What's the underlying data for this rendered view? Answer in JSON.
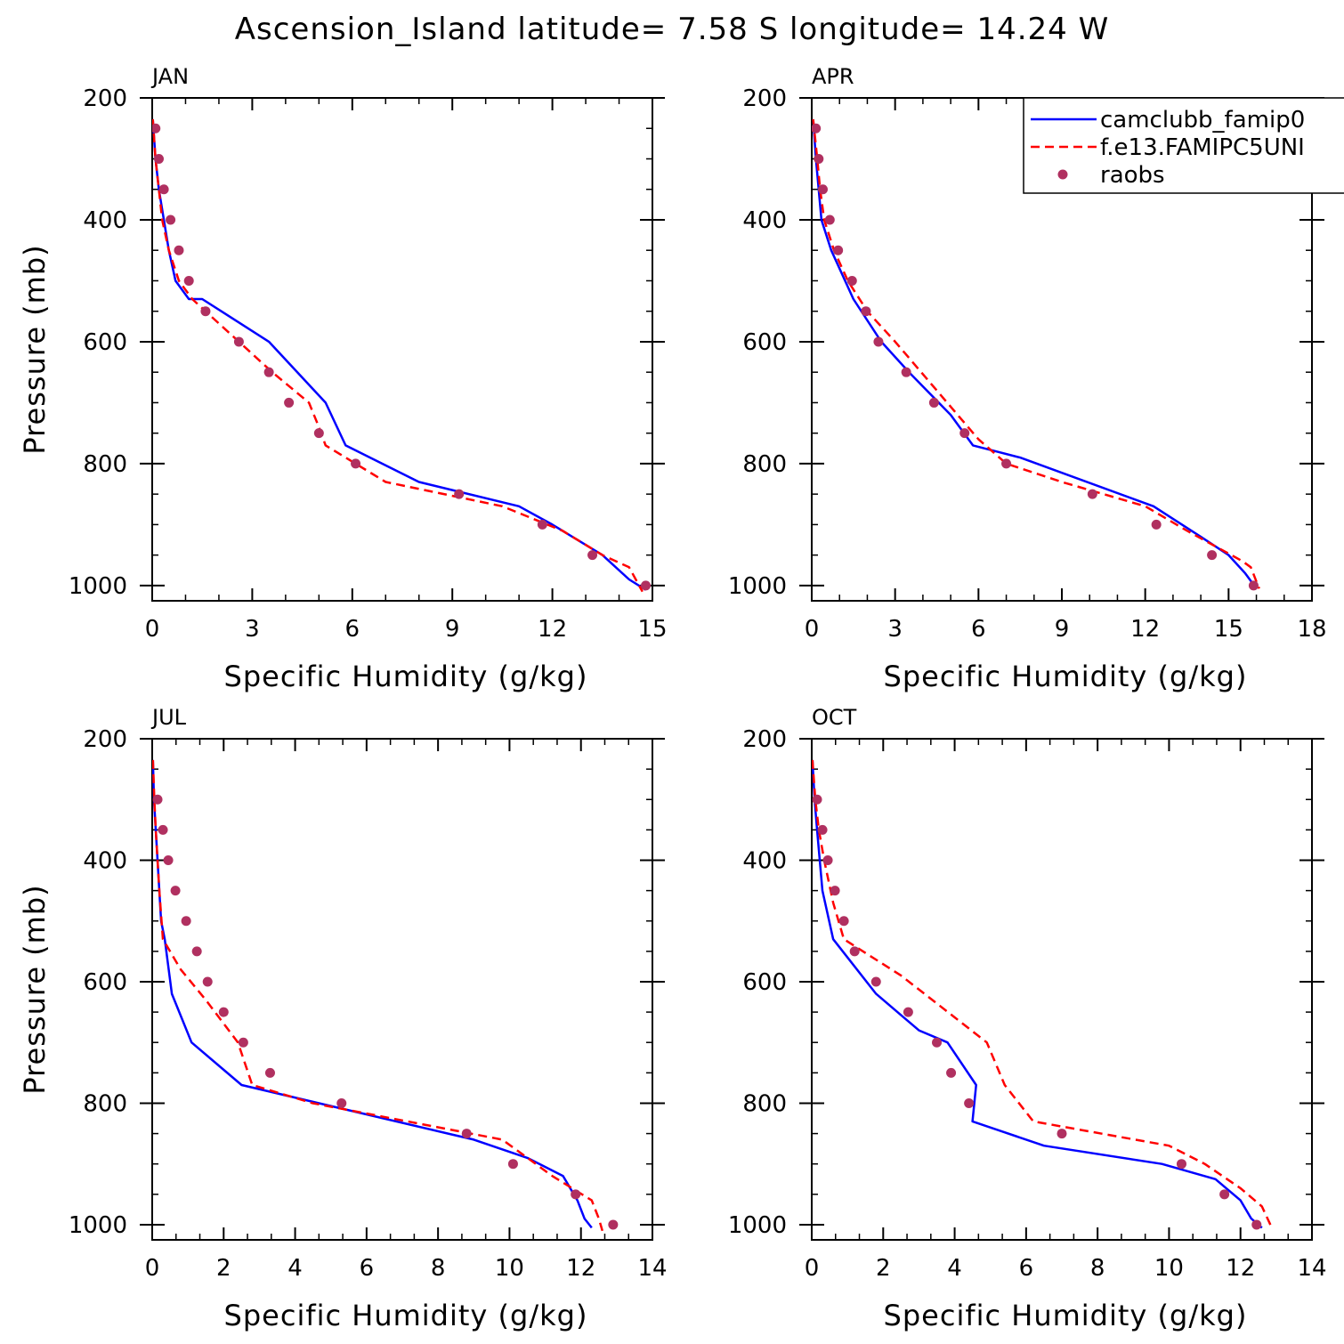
{
  "title": "Ascension_Island  latitude= 7.58 S longitude= 14.24 W",
  "legend": {
    "items": [
      {
        "label": "camclubb_famip0",
        "color": "#0000ff",
        "style": "solid"
      },
      {
        "label": "f.e13.FAMIPC5UNI",
        "color": "#ff0000",
        "style": "dashed"
      },
      {
        "label": "raobs",
        "color": "#b03060",
        "style": "dot"
      }
    ]
  },
  "chart_data": [
    {
      "type": "line",
      "month": "JAN",
      "xlabel": "Specific Humidity (g/kg)",
      "ylabel": "Pressure (mb)",
      "xlim": [
        0,
        15
      ],
      "ylim": [
        1025,
        200
      ],
      "xticks": [
        0,
        3,
        6,
        9,
        12,
        15
      ],
      "yticks": [
        200,
        400,
        600,
        800,
        1000
      ],
      "series": [
        {
          "name": "camclubb_famip0",
          "color": "#0000ff",
          "style": "solid",
          "x": [
            0.02,
            0.1,
            0.2,
            0.35,
            0.5,
            0.7,
            1.1,
            1.5,
            3.5,
            5.2,
            5.8,
            8.0,
            11.0,
            12.0,
            13.5,
            14.3,
            14.8
          ],
          "y": [
            235,
            300,
            350,
            400,
            450,
            500,
            530,
            530,
            600,
            700,
            770,
            830,
            870,
            900,
            950,
            990,
            1007
          ]
        },
        {
          "name": "f.e13.FAMIPC5UNI",
          "color": "#ff0000",
          "style": "dashed",
          "x": [
            0.02,
            0.1,
            0.2,
            0.3,
            0.5,
            0.8,
            1.2,
            1.6,
            2.6,
            3.6,
            4.7,
            5.0,
            5.2,
            7.0,
            10.5,
            12.3,
            13.5,
            14.3,
            14.7
          ],
          "y": [
            235,
            300,
            350,
            400,
            450,
            500,
            530,
            550,
            600,
            650,
            700,
            740,
            770,
            830,
            870,
            910,
            950,
            970,
            1010
          ]
        },
        {
          "name": "raobs",
          "color": "#b03060",
          "style": "dot",
          "x": [
            0.1,
            0.2,
            0.35,
            0.55,
            0.8,
            1.1,
            1.6,
            2.6,
            3.5,
            4.1,
            5.0,
            6.1,
            9.2,
            11.7,
            13.2,
            14.8
          ],
          "y": [
            250,
            300,
            350,
            400,
            450,
            500,
            550,
            600,
            650,
            700,
            750,
            800,
            850,
            900,
            950,
            1000
          ]
        }
      ]
    },
    {
      "type": "line",
      "month": "APR",
      "xlabel": "Specific Humidity (g/kg)",
      "ylabel": "",
      "xlim": [
        0,
        18
      ],
      "ylim": [
        1025,
        200
      ],
      "xticks": [
        0,
        3,
        6,
        9,
        12,
        15,
        18
      ],
      "yticks": [
        200,
        400,
        600,
        800,
        1000
      ],
      "series": [
        {
          "name": "camclubb_famip0",
          "color": "#0000ff",
          "style": "solid",
          "x": [
            0.05,
            0.15,
            0.25,
            0.35,
            0.7,
            1.5,
            2.5,
            3.5,
            5.0,
            5.8,
            7.5,
            12.3,
            14.0,
            15.0,
            15.6,
            16.0
          ],
          "y": [
            235,
            300,
            350,
            400,
            450,
            530,
            600,
            650,
            720,
            770,
            790,
            870,
            920,
            950,
            980,
            1005
          ]
        },
        {
          "name": "f.e13.FAMIPC5UNI",
          "color": "#ff0000",
          "style": "dashed",
          "x": [
            0.05,
            0.2,
            0.3,
            0.45,
            0.8,
            1.3,
            2.0,
            3.0,
            4.5,
            6.0,
            7.0,
            9.0,
            12.0,
            13.5,
            15.5,
            15.8,
            16.1
          ],
          "y": [
            235,
            300,
            350,
            400,
            450,
            500,
            550,
            600,
            680,
            760,
            800,
            830,
            870,
            910,
            960,
            970,
            1005
          ]
        },
        {
          "name": "raobs",
          "color": "#b03060",
          "style": "dot",
          "x": [
            0.15,
            0.25,
            0.4,
            0.65,
            0.95,
            1.45,
            1.95,
            2.4,
            3.4,
            4.4,
            5.5,
            7.0,
            10.1,
            12.4,
            14.4,
            15.9
          ],
          "y": [
            250,
            300,
            350,
            400,
            450,
            500,
            550,
            600,
            650,
            700,
            750,
            800,
            850,
            900,
            950,
            1000
          ]
        }
      ]
    },
    {
      "type": "line",
      "month": "JUL",
      "xlabel": "Specific Humidity (g/kg)",
      "ylabel": "Pressure (mb)",
      "xlim": [
        0,
        14
      ],
      "ylim": [
        1025,
        200
      ],
      "xticks": [
        0,
        2,
        4,
        6,
        8,
        10,
        12,
        14
      ],
      "yticks": [
        200,
        400,
        600,
        800,
        1000
      ],
      "series": [
        {
          "name": "camclubb_famip0",
          "color": "#0000ff",
          "style": "solid",
          "x": [
            0.02,
            0.05,
            0.1,
            0.15,
            0.2,
            0.25,
            0.35,
            0.55,
            1.1,
            2.5,
            9.0,
            10.5,
            11.5,
            11.9,
            12.1,
            12.3
          ],
          "y": [
            235,
            300,
            350,
            400,
            450,
            500,
            530,
            620,
            700,
            770,
            860,
            890,
            920,
            960,
            990,
            1005
          ]
        },
        {
          "name": "f.e13.FAMIPC5UNI",
          "color": "#ff0000",
          "style": "dashed",
          "x": [
            0.02,
            0.06,
            0.1,
            0.15,
            0.2,
            0.3,
            0.8,
            1.5,
            2.4,
            2.8,
            4.5,
            9.8,
            11.2,
            12.3,
            12.5,
            12.6
          ],
          "y": [
            235,
            300,
            350,
            400,
            450,
            530,
            580,
            630,
            700,
            770,
            800,
            860,
            920,
            960,
            990,
            1010
          ]
        },
        {
          "name": "raobs",
          "color": "#b03060",
          "style": "dot",
          "x": [
            0.15,
            0.3,
            0.45,
            0.65,
            0.95,
            1.25,
            1.55,
            2.0,
            2.55,
            3.3,
            5.3,
            8.8,
            10.1,
            11.85,
            12.9
          ],
          "y": [
            300,
            350,
            400,
            450,
            500,
            550,
            600,
            650,
            700,
            750,
            800,
            850,
            900,
            950,
            1000
          ]
        }
      ]
    },
    {
      "type": "line",
      "month": "OCT",
      "xlabel": "Specific Humidity (g/kg)",
      "ylabel": "",
      "xlim": [
        0,
        14
      ],
      "ylim": [
        1025,
        200
      ],
      "xticks": [
        0,
        2,
        4,
        6,
        8,
        10,
        12,
        14
      ],
      "yticks": [
        200,
        400,
        600,
        800,
        1000
      ],
      "series": [
        {
          "name": "camclubb_famip0",
          "color": "#0000ff",
          "style": "solid",
          "x": [
            0.02,
            0.08,
            0.15,
            0.3,
            0.6,
            1.8,
            3.0,
            3.8,
            4.6,
            4.5,
            6.5,
            9.8,
            11.3,
            12.0,
            12.3,
            12.6
          ],
          "y": [
            235,
            300,
            350,
            450,
            530,
            620,
            680,
            700,
            770,
            830,
            870,
            900,
            925,
            960,
            990,
            1005
          ]
        },
        {
          "name": "f.e13.FAMIPC5UNI",
          "color": "#ff0000",
          "style": "dashed",
          "x": [
            0.02,
            0.1,
            0.2,
            0.35,
            0.6,
            0.9,
            2.5,
            4.9,
            5.4,
            6.2,
            10.0,
            11.0,
            12.0,
            12.6,
            12.9
          ],
          "y": [
            235,
            300,
            350,
            400,
            470,
            530,
            590,
            700,
            770,
            830,
            870,
            900,
            940,
            970,
            1008
          ]
        },
        {
          "name": "raobs",
          "color": "#b03060",
          "style": "dot",
          "x": [
            0.15,
            0.3,
            0.45,
            0.65,
            0.9,
            1.2,
            1.8,
            2.7,
            3.5,
            3.9,
            4.4,
            7.0,
            10.35,
            11.55,
            12.45
          ],
          "y": [
            300,
            350,
            400,
            450,
            500,
            550,
            600,
            650,
            700,
            750,
            800,
            850,
            900,
            950,
            1000
          ]
        }
      ]
    }
  ]
}
